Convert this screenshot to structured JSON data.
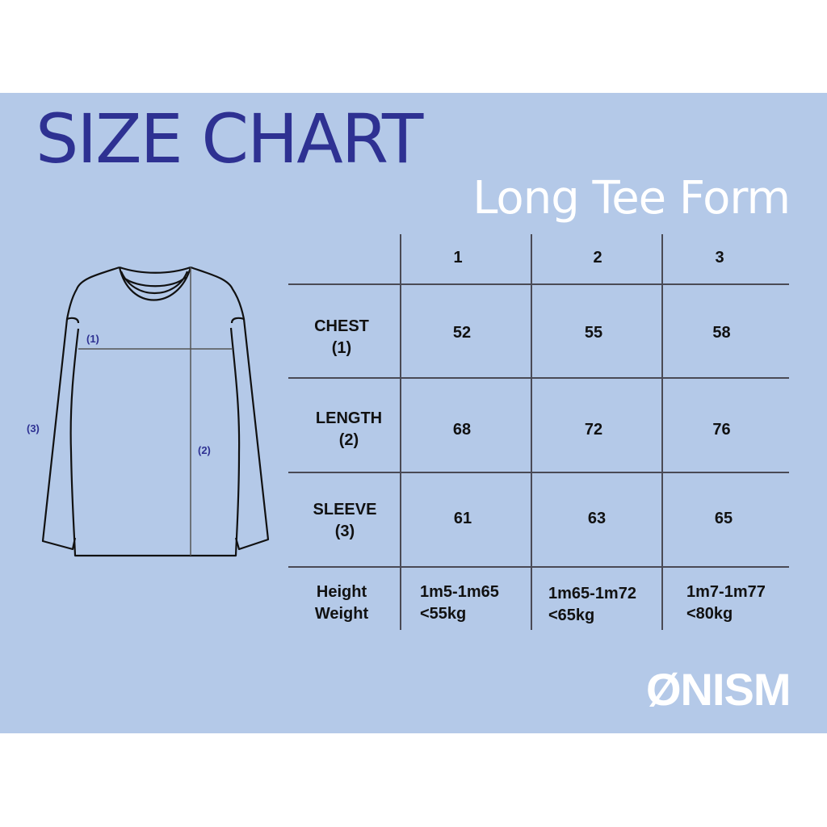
{
  "title": "SIZE CHART",
  "subtitle": "Long Tee Form",
  "diagram_labels": {
    "chest": "(1)",
    "length": "(2)",
    "sleeve": "(3)"
  },
  "table": {
    "columns": [
      "1",
      "2",
      "3"
    ],
    "rows": [
      {
        "label": "CHEST",
        "sub": "(1)",
        "values": [
          "52",
          "55",
          "58"
        ]
      },
      {
        "label": "LENGTH",
        "sub": "(2)",
        "values": [
          "68",
          "72",
          "76"
        ]
      },
      {
        "label": "SLEEVE",
        "sub": "(3)",
        "values": [
          "61",
          "63",
          "65"
        ]
      }
    ],
    "fit": {
      "label": "Height",
      "sub": "Weight",
      "heights": [
        "1m5-1m65",
        "1m65-1m72",
        "1m7-1m77"
      ],
      "weights": [
        "<55kg",
        "<65kg",
        "<80kg"
      ]
    }
  },
  "logo": "ØNISM",
  "colors": {
    "background": "#b4c9e8",
    "title": "#2e3192",
    "subtitle": "#ffffff"
  }
}
